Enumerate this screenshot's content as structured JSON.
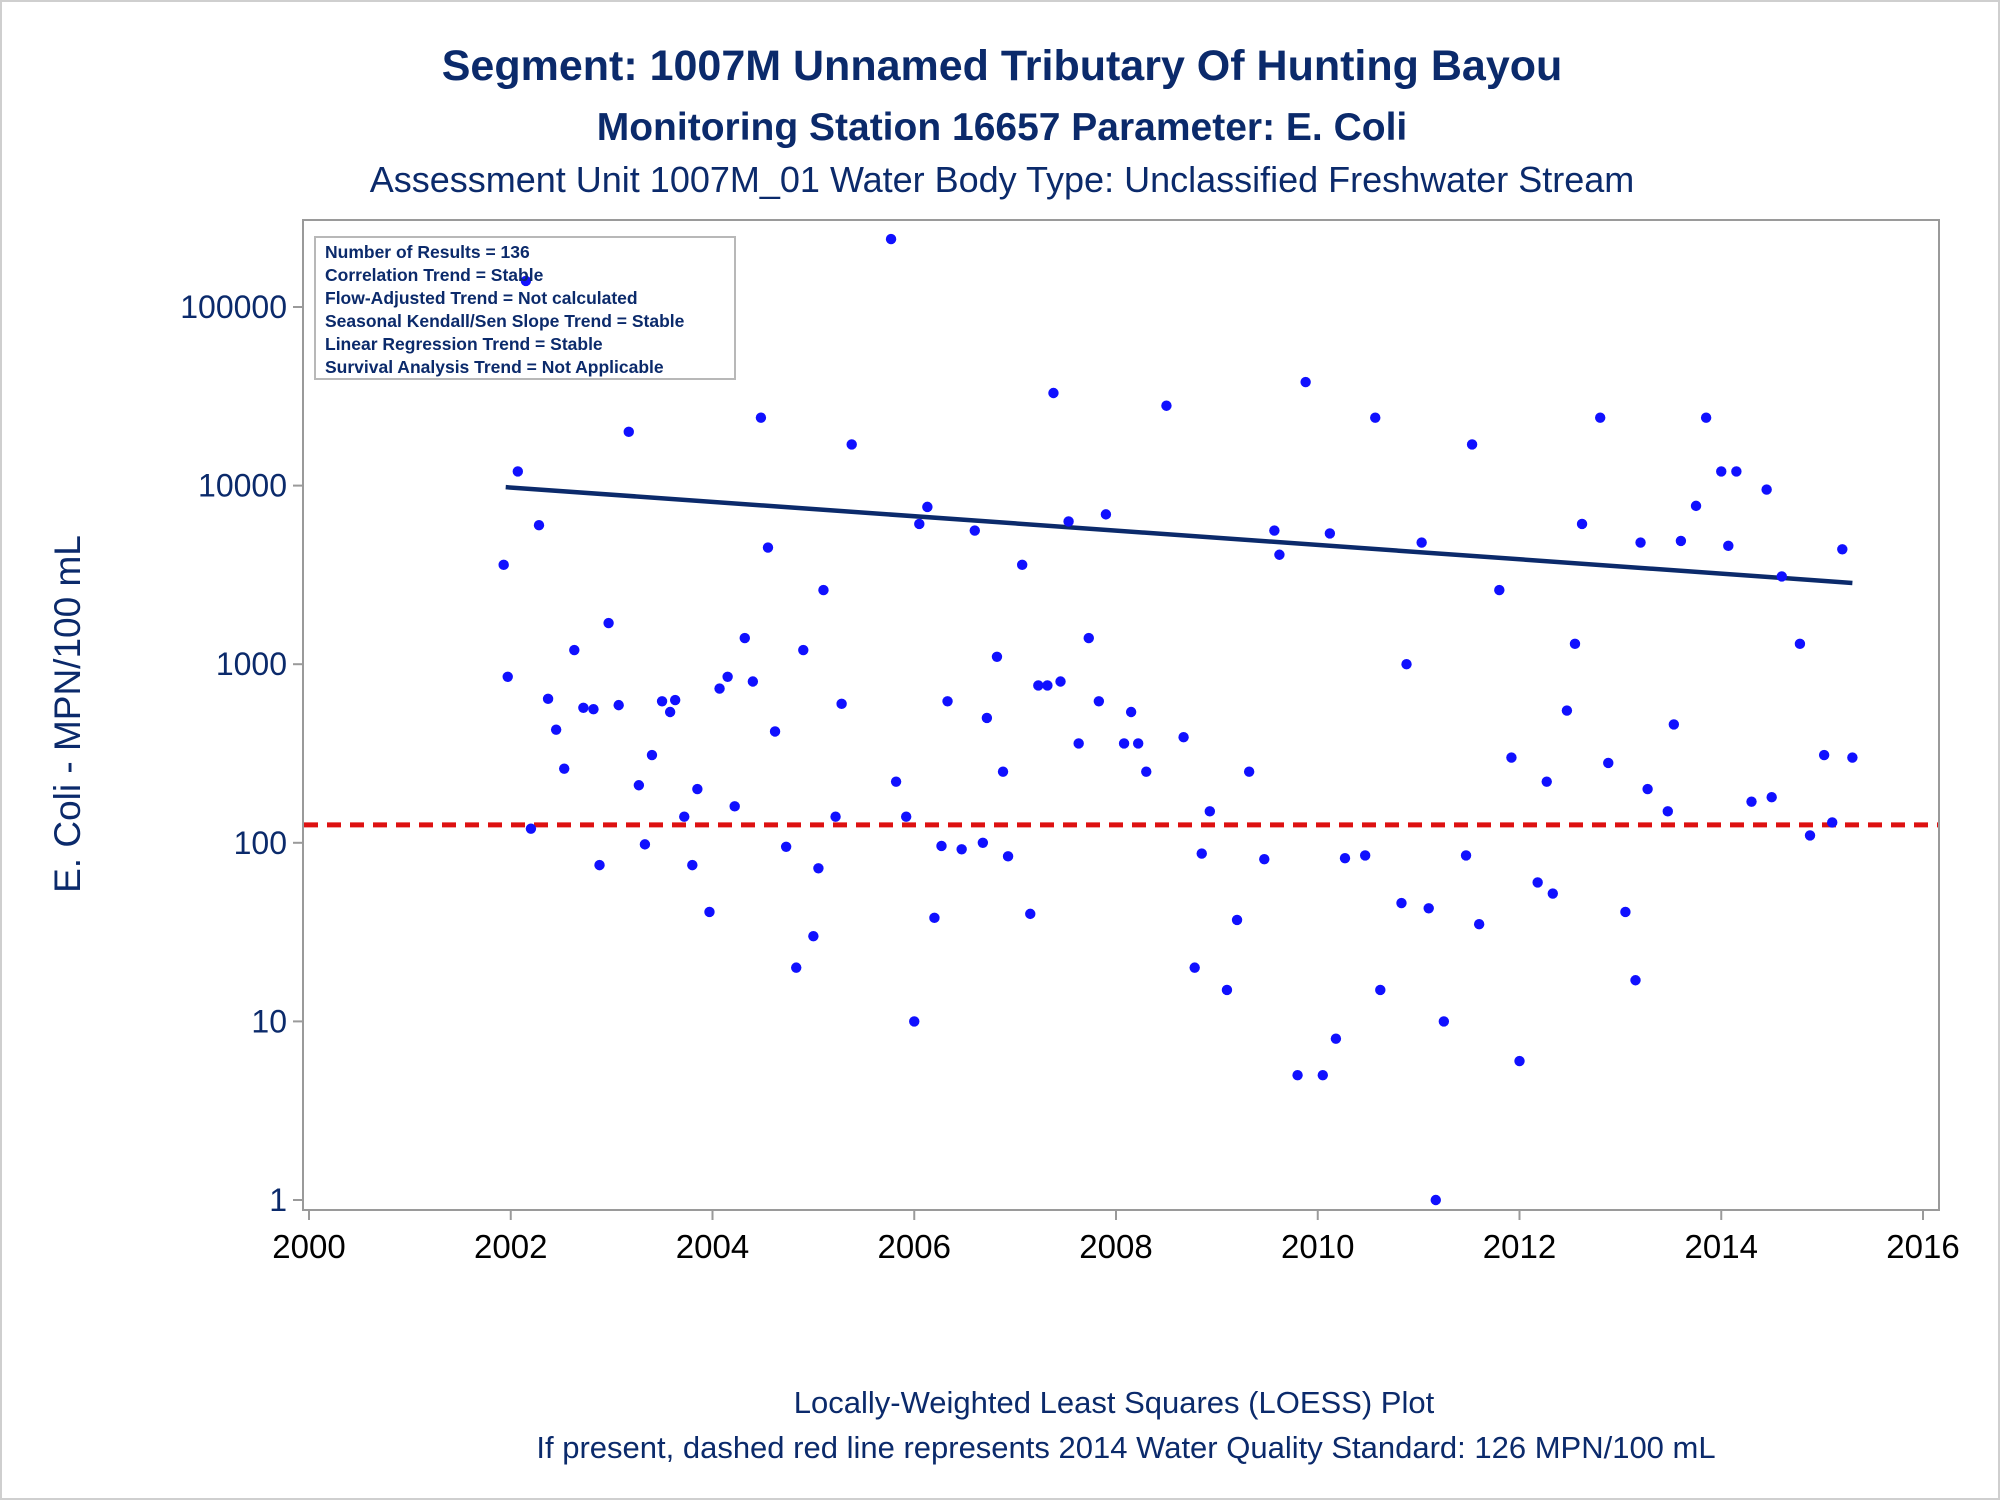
{
  "chart_data": {
    "type": "scatter",
    "title": "Segment: 1007M  Unnamed Tributary Of Hunting Bayou",
    "subtitle": "Monitoring Station 16657 Parameter: E. Coli",
    "subtitle2": "Assessment Unit 1007M_01   Water Body Type: Unclassified Freshwater Stream",
    "ylabel": "E. Coli - MPN/100 mL",
    "xlabel": "",
    "footnote1": "Locally-Weighted Least Squares (LOESS) Plot",
    "footnote2": "If present, dashed red line represents 2014 Water Quality Standard: 126 MPN/100 mL",
    "y_scale": "log",
    "xlim": [
      2000,
      2016
    ],
    "ylim": [
      1,
      300000
    ],
    "x_ticks": [
      2000,
      2002,
      2004,
      2006,
      2008,
      2010,
      2012,
      2014,
      2016
    ],
    "y_ticks": [
      1,
      10,
      100,
      1000,
      10000,
      100000
    ],
    "y_tick_labels": [
      "1",
      "10",
      "100",
      "1000",
      "10000",
      "100000"
    ],
    "grid": false,
    "legend": "none",
    "colors": {
      "points": "#1010ff",
      "trend": "#0b2a6b",
      "standard": "#dd1111",
      "text": "#0b2a6b",
      "axis": "#9a9a9a"
    },
    "stats_box": {
      "position": "top-left",
      "lines": [
        "Number of Results = 136",
        "Correlation Trend = Stable",
        "Flow-Adjusted Trend = Not calculated",
        "Seasonal Kendall/Sen Slope Trend = Stable",
        "Linear Regression Trend = Stable",
        "Survival Analysis Trend = Not Applicable"
      ]
    },
    "standard_line": {
      "value": 126,
      "style": "dashed"
    },
    "trend_line": {
      "x": [
        2001.95,
        2015.3
      ],
      "y": [
        9800,
        2850
      ]
    },
    "points": [
      [
        2001.93,
        3600
      ],
      [
        2001.97,
        850
      ],
      [
        2002.07,
        12000
      ],
      [
        2002.15,
        140000
      ],
      [
        2002.2,
        120
      ],
      [
        2002.28,
        6000
      ],
      [
        2002.37,
        640
      ],
      [
        2002.45,
        430
      ],
      [
        2002.53,
        260
      ],
      [
        2002.63,
        1200
      ],
      [
        2002.72,
        570
      ],
      [
        2002.82,
        560
      ],
      [
        2002.88,
        75
      ],
      [
        2002.97,
        1700
      ],
      [
        2003.07,
        590
      ],
      [
        2003.17,
        20000
      ],
      [
        2003.27,
        210
      ],
      [
        2003.33,
        98
      ],
      [
        2003.4,
        310
      ],
      [
        2003.5,
        620
      ],
      [
        2003.58,
        540
      ],
      [
        2003.63,
        630
      ],
      [
        2003.72,
        140
      ],
      [
        2003.8,
        75
      ],
      [
        2003.85,
        200
      ],
      [
        2003.97,
        41
      ],
      [
        2004.07,
        730
      ],
      [
        2004.15,
        850
      ],
      [
        2004.22,
        160
      ],
      [
        2004.32,
        1400
      ],
      [
        2004.4,
        800
      ],
      [
        2004.48,
        24000
      ],
      [
        2004.55,
        4500
      ],
      [
        2004.62,
        420
      ],
      [
        2004.73,
        95
      ],
      [
        2004.83,
        20
      ],
      [
        2004.9,
        1200
      ],
      [
        2005.0,
        30
      ],
      [
        2005.05,
        72
      ],
      [
        2005.1,
        2600
      ],
      [
        2005.22,
        140
      ],
      [
        2005.28,
        600
      ],
      [
        2005.38,
        17000
      ],
      [
        2005.77,
        240000
      ],
      [
        2005.82,
        220
      ],
      [
        2005.92,
        140
      ],
      [
        2006.0,
        10
      ],
      [
        2006.05,
        6100
      ],
      [
        2006.13,
        7600
      ],
      [
        2006.2,
        38
      ],
      [
        2006.27,
        96
      ],
      [
        2006.33,
        620
      ],
      [
        2006.47,
        92
      ],
      [
        2006.6,
        5600
      ],
      [
        2006.68,
        100
      ],
      [
        2006.72,
        500
      ],
      [
        2006.82,
        1100
      ],
      [
        2006.88,
        250
      ],
      [
        2006.93,
        84
      ],
      [
        2007.07,
        3600
      ],
      [
        2007.15,
        40
      ],
      [
        2007.23,
        760
      ],
      [
        2007.32,
        760
      ],
      [
        2007.38,
        33000
      ],
      [
        2007.45,
        800
      ],
      [
        2007.53,
        6300
      ],
      [
        2007.63,
        360
      ],
      [
        2007.73,
        1400
      ],
      [
        2007.83,
        620
      ],
      [
        2007.9,
        6900
      ],
      [
        2008.08,
        360
      ],
      [
        2008.15,
        540
      ],
      [
        2008.22,
        360
      ],
      [
        2008.3,
        250
      ],
      [
        2008.5,
        28000
      ],
      [
        2008.67,
        390
      ],
      [
        2008.78,
        20
      ],
      [
        2008.85,
        87
      ],
      [
        2008.93,
        150
      ],
      [
        2009.1,
        15
      ],
      [
        2009.2,
        37
      ],
      [
        2009.32,
        250
      ],
      [
        2009.47,
        81
      ],
      [
        2009.57,
        5600
      ],
      [
        2009.62,
        4100
      ],
      [
        2009.8,
        5
      ],
      [
        2009.88,
        38000
      ],
      [
        2010.05,
        5
      ],
      [
        2010.12,
        5400
      ],
      [
        2010.18,
        8
      ],
      [
        2010.27,
        82
      ],
      [
        2010.47,
        85
      ],
      [
        2010.57,
        24000
      ],
      [
        2010.62,
        15
      ],
      [
        2010.83,
        46
      ],
      [
        2010.88,
        1000
      ],
      [
        2011.03,
        4800
      ],
      [
        2011.1,
        43
      ],
      [
        2011.17,
        1
      ],
      [
        2011.25,
        10
      ],
      [
        2011.47,
        85
      ],
      [
        2011.53,
        17000
      ],
      [
        2011.6,
        35
      ],
      [
        2011.8,
        2600
      ],
      [
        2011.92,
        300
      ],
      [
        2012.0,
        6
      ],
      [
        2012.18,
        60
      ],
      [
        2012.27,
        220
      ],
      [
        2012.33,
        52
      ],
      [
        2012.47,
        550
      ],
      [
        2012.55,
        1300
      ],
      [
        2012.62,
        6100
      ],
      [
        2012.8,
        24000
      ],
      [
        2012.88,
        280
      ],
      [
        2013.05,
        41
      ],
      [
        2013.15,
        17
      ],
      [
        2013.2,
        4800
      ],
      [
        2013.27,
        200
      ],
      [
        2013.47,
        150
      ],
      [
        2013.53,
        460
      ],
      [
        2013.6,
        4900
      ],
      [
        2013.75,
        7700
      ],
      [
        2013.85,
        24000
      ],
      [
        2014.0,
        12000
      ],
      [
        2014.07,
        4600
      ],
      [
        2014.15,
        12000
      ],
      [
        2014.3,
        170
      ],
      [
        2014.45,
        9500
      ],
      [
        2014.5,
        180
      ],
      [
        2014.6,
        3100
      ],
      [
        2014.78,
        1300
      ],
      [
        2014.88,
        110
      ],
      [
        2015.02,
        310
      ],
      [
        2015.1,
        130
      ],
      [
        2015.2,
        4400
      ],
      [
        2015.3,
        300
      ]
    ]
  }
}
